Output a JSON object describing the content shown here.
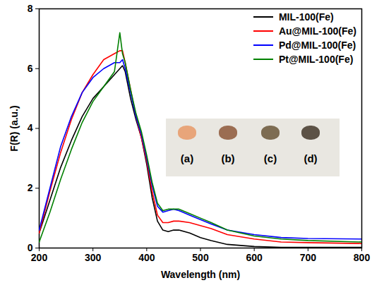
{
  "chart_data": {
    "type": "line",
    "x_label": "Wavelength (nm)",
    "y_label": "F(R) (a.u.)",
    "xlim": [
      200,
      800
    ],
    "ylim": [
      0,
      8
    ],
    "xticks": [
      200,
      300,
      400,
      500,
      600,
      700,
      800
    ],
    "yticks": [
      0,
      2,
      4,
      6,
      8
    ],
    "legend": "top-right",
    "annotations": [
      "(a)",
      "(b)",
      "(c)",
      "(d)"
    ],
    "x": [
      200,
      220,
      240,
      260,
      280,
      300,
      320,
      340,
      350,
      355,
      360,
      370,
      380,
      390,
      400,
      410,
      420,
      430,
      440,
      450,
      460,
      480,
      500,
      520,
      550,
      600,
      650,
      700,
      800
    ],
    "series": [
      {
        "name": "MIL-100(Fe)",
        "color": "#000000",
        "values": [
          0.5,
          1.6,
          2.7,
          3.6,
          4.4,
          5.0,
          5.4,
          5.8,
          6.0,
          6.1,
          5.9,
          5.0,
          4.3,
          3.7,
          2.8,
          1.7,
          0.9,
          0.6,
          0.55,
          0.6,
          0.6,
          0.5,
          0.35,
          0.25,
          0.12,
          0.05,
          0.02,
          0.02,
          0.02
        ]
      },
      {
        "name": "Au@MIL-100(Fe)",
        "color": "#ff0000",
        "values": [
          0.5,
          1.9,
          3.2,
          4.3,
          5.2,
          5.8,
          6.3,
          6.5,
          6.6,
          6.6,
          6.2,
          5.3,
          4.4,
          3.7,
          2.9,
          1.9,
          1.1,
          0.85,
          0.85,
          0.9,
          0.9,
          0.85,
          0.75,
          0.65,
          0.45,
          0.3,
          0.2,
          0.18,
          0.15
        ]
      },
      {
        "name": "Pd@MIL-100(Fe)",
        "color": "#0000ff",
        "values": [
          0.6,
          2.0,
          3.4,
          4.4,
          5.2,
          5.7,
          6.0,
          6.2,
          6.2,
          6.3,
          6.0,
          5.2,
          4.4,
          3.8,
          3.0,
          2.1,
          1.4,
          1.2,
          1.25,
          1.3,
          1.25,
          1.1,
          0.95,
          0.8,
          0.6,
          0.45,
          0.35,
          0.32,
          0.3
        ]
      },
      {
        "name": "Pt@MIL-100(Fe)",
        "color": "#008000",
        "values": [
          0.2,
          1.2,
          2.3,
          3.3,
          4.2,
          4.9,
          5.4,
          5.9,
          7.2,
          6.5,
          6.2,
          5.3,
          4.5,
          3.9,
          3.1,
          2.2,
          1.5,
          1.25,
          1.3,
          1.3,
          1.3,
          1.15,
          1.0,
          0.85,
          0.6,
          0.4,
          0.3,
          0.25,
          0.2
        ]
      }
    ]
  }
}
